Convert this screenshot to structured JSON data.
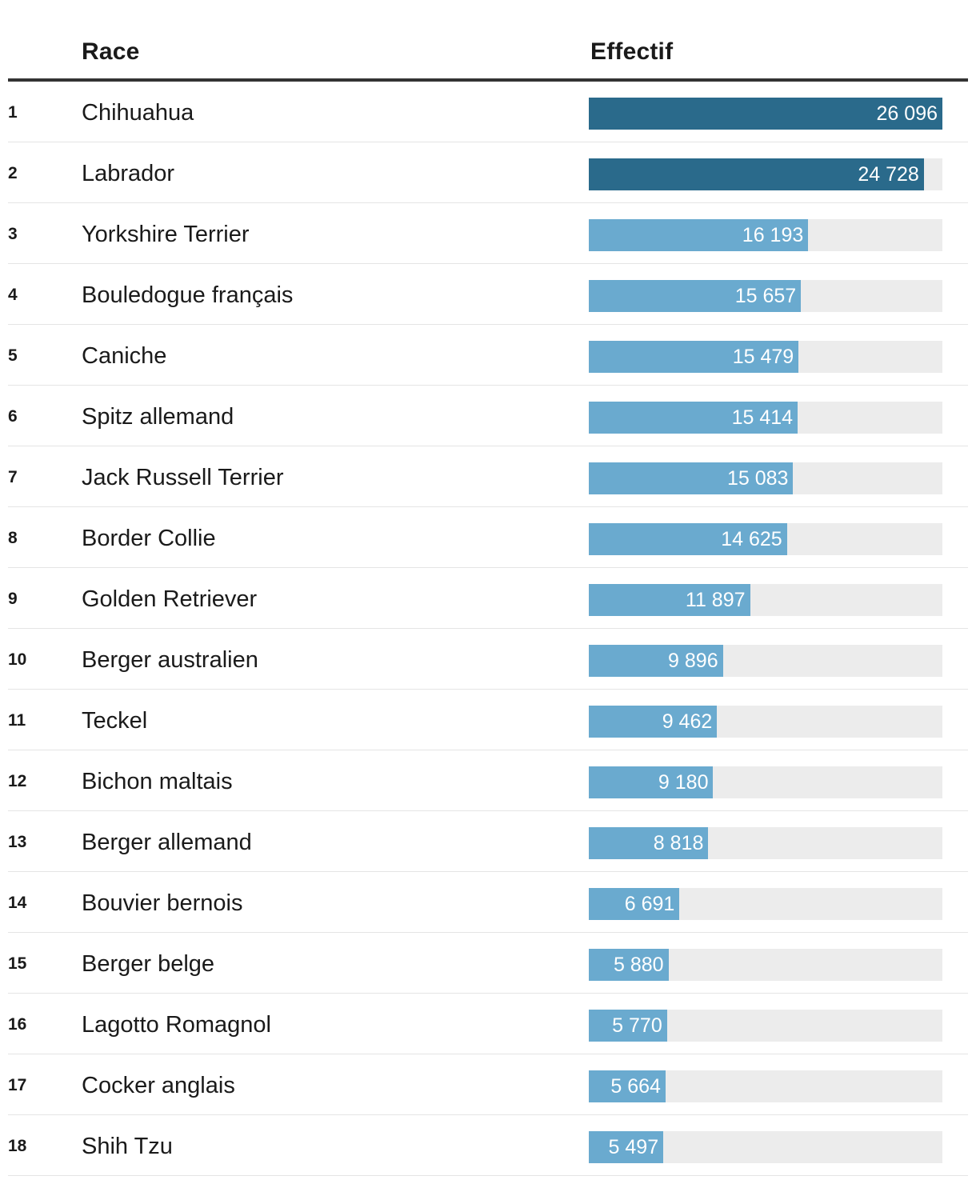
{
  "header": {
    "rank_label": "",
    "race_label": "Race",
    "effectif_label": "Effectif"
  },
  "colors": {
    "top": "#2a6a8b",
    "rest": "#6aaacf",
    "track": "#ececec"
  },
  "chart_data": {
    "type": "bar",
    "orientation": "horizontal",
    "xlim": [
      0,
      26096
    ],
    "columns": [
      "Race",
      "Effectif"
    ],
    "categories": [
      "Chihuahua",
      "Labrador",
      "Yorkshire Terrier",
      "Bouledogue français",
      "Caniche",
      "Spitz allemand",
      "Jack Russell Terrier",
      "Border Collie",
      "Golden Retriever",
      "Berger australien",
      "Teckel",
      "Bichon maltais",
      "Berger allemand",
      "Bouvier bernois",
      "Berger belge",
      "Lagotto Romagnol",
      "Cocker anglais",
      "Shih Tzu"
    ],
    "values": [
      26096,
      24728,
      16193,
      15657,
      15479,
      15414,
      15083,
      14625,
      11897,
      9896,
      9462,
      9180,
      8818,
      6691,
      5880,
      5770,
      5664,
      5497
    ],
    "rows": [
      {
        "rank": "1",
        "breed": "Chihuahua",
        "value": 26096,
        "label": "26 096",
        "highlight": true
      },
      {
        "rank": "2",
        "breed": "Labrador",
        "value": 24728,
        "label": "24 728",
        "highlight": true
      },
      {
        "rank": "3",
        "breed": "Yorkshire Terrier",
        "value": 16193,
        "label": "16 193",
        "highlight": false
      },
      {
        "rank": "4",
        "breed": "Bouledogue français",
        "value": 15657,
        "label": "15 657",
        "highlight": false
      },
      {
        "rank": "5",
        "breed": "Caniche",
        "value": 15479,
        "label": "15 479",
        "highlight": false
      },
      {
        "rank": "6",
        "breed": "Spitz allemand",
        "value": 15414,
        "label": "15 414",
        "highlight": false
      },
      {
        "rank": "7",
        "breed": "Jack Russell Terrier",
        "value": 15083,
        "label": "15 083",
        "highlight": false
      },
      {
        "rank": "8",
        "breed": "Border Collie",
        "value": 14625,
        "label": "14 625",
        "highlight": false
      },
      {
        "rank": "9",
        "breed": "Golden Retriever",
        "value": 11897,
        "label": "11 897",
        "highlight": false
      },
      {
        "rank": "10",
        "breed": "Berger australien",
        "value": 9896,
        "label": "9 896",
        "highlight": false
      },
      {
        "rank": "11",
        "breed": "Teckel",
        "value": 9462,
        "label": "9 462",
        "highlight": false
      },
      {
        "rank": "12",
        "breed": "Bichon maltais",
        "value": 9180,
        "label": "9 180",
        "highlight": false
      },
      {
        "rank": "13",
        "breed": "Berger allemand",
        "value": 8818,
        "label": "8 818",
        "highlight": false
      },
      {
        "rank": "14",
        "breed": "Bouvier bernois",
        "value": 6691,
        "label": "6 691",
        "highlight": false
      },
      {
        "rank": "15",
        "breed": "Berger belge",
        "value": 5880,
        "label": "5 880",
        "highlight": false
      },
      {
        "rank": "16",
        "breed": "Lagotto Romagnol",
        "value": 5770,
        "label": "5 770",
        "highlight": false
      },
      {
        "rank": "17",
        "breed": "Cocker anglais",
        "value": 5664,
        "label": "5 664",
        "highlight": false
      },
      {
        "rank": "18",
        "breed": "Shih Tzu",
        "value": 5497,
        "label": "5 497",
        "highlight": false
      }
    ]
  }
}
